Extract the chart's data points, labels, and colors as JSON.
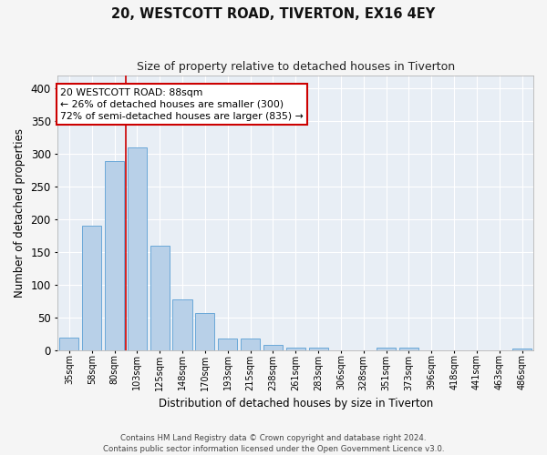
{
  "title": "20, WESTCOTT ROAD, TIVERTON, EX16 4EY",
  "subtitle": "Size of property relative to detached houses in Tiverton",
  "xlabel": "Distribution of detached houses by size in Tiverton",
  "ylabel": "Number of detached properties",
  "bar_color": "#b8d0e8",
  "bar_edge_color": "#5a9fd4",
  "background_color": "#e8eef5",
  "grid_color": "#ffffff",
  "categories": [
    "35sqm",
    "58sqm",
    "80sqm",
    "103sqm",
    "125sqm",
    "148sqm",
    "170sqm",
    "193sqm",
    "215sqm",
    "238sqm",
    "261sqm",
    "283sqm",
    "306sqm",
    "328sqm",
    "351sqm",
    "373sqm",
    "396sqm",
    "418sqm",
    "441sqm",
    "463sqm",
    "486sqm"
  ],
  "values": [
    20,
    190,
    290,
    310,
    160,
    78,
    57,
    18,
    18,
    8,
    5,
    5,
    0,
    0,
    5,
    5,
    0,
    0,
    0,
    0,
    3
  ],
  "ylim": [
    0,
    420
  ],
  "yticks": [
    0,
    50,
    100,
    150,
    200,
    250,
    300,
    350,
    400
  ],
  "vline_x_index": 2,
  "vline_color": "#cc0000",
  "annotation_text": "20 WESTCOTT ROAD: 88sqm\n← 26% of detached houses are smaller (300)\n72% of semi-detached houses are larger (835) →",
  "annotation_box_color": "#ffffff",
  "annotation_box_edge_color": "#cc0000",
  "footer_line1": "Contains HM Land Registry data © Crown copyright and database right 2024.",
  "footer_line2": "Contains public sector information licensed under the Open Government Licence v3.0."
}
